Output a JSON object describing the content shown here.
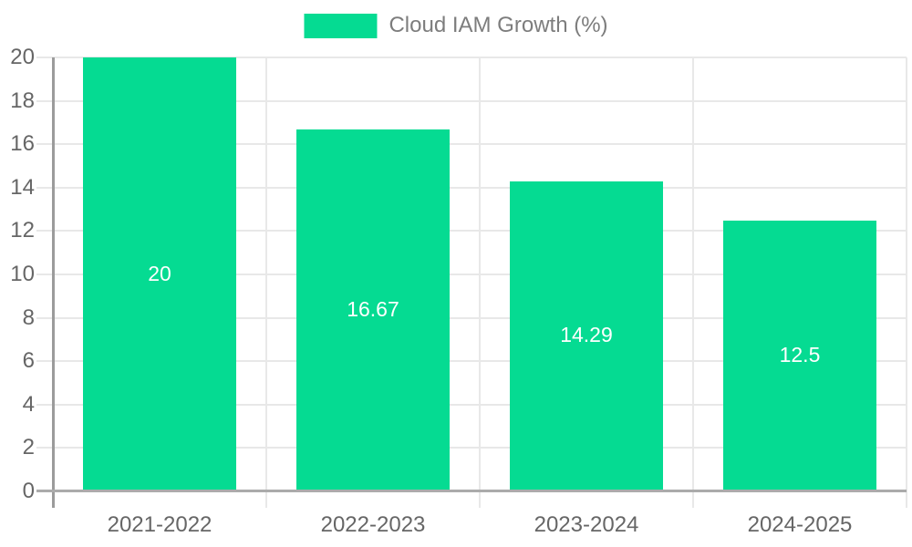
{
  "chart_data": {
    "type": "bar",
    "title": "",
    "categories": [
      "2021-2022",
      "2022-2023",
      "2023-2024",
      "2024-2025"
    ],
    "series": [
      {
        "name": "Cloud IAM Growth (%)",
        "values": [
          20,
          16.67,
          14.29,
          12.5
        ]
      }
    ],
    "value_labels": [
      "20",
      "16.67",
      "14.29",
      "12.5"
    ],
    "xlabel": "",
    "ylabel": "",
    "ylim": [
      0,
      20
    ],
    "ytick_step": 2,
    "ytick_labels": [
      "0",
      "2",
      "4",
      "6",
      "8",
      "10",
      "12",
      "14",
      "16",
      "18",
      "20"
    ],
    "grid": true,
    "legend_position": "top-center",
    "colors": {
      "bar": "#05DB92",
      "bar_value_text": "#FFFFFF",
      "gridline": "#E8E8E8",
      "axis_line_y": "#9B9B9B",
      "axis_line_x": "#ABABAB",
      "tick_label": "#666666",
      "legend_text": "#7D7D7D",
      "background": "#FFFFFF"
    }
  }
}
